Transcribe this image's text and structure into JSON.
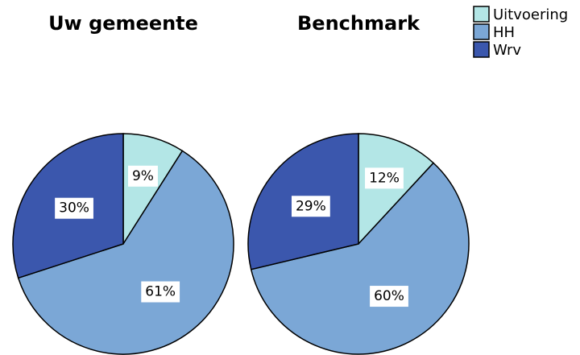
{
  "legend": {
    "position": "upper right",
    "entries": [
      "Uitvoering",
      "HH",
      "Wrv"
    ],
    "colors": [
      "#b3e6e6",
      "#7ba7d6",
      "#3b57ad"
    ]
  },
  "chart_data": [
    {
      "type": "pie",
      "title": "Uw gemeente",
      "values": [
        9,
        61,
        30
      ],
      "value_labels": [
        "9%",
        "61%",
        "30%"
      ]
    },
    {
      "type": "pie",
      "title": "Benchmark",
      "values": [
        12,
        60,
        29
      ],
      "value_labels": [
        "12%",
        "60%",
        "29%"
      ]
    }
  ]
}
